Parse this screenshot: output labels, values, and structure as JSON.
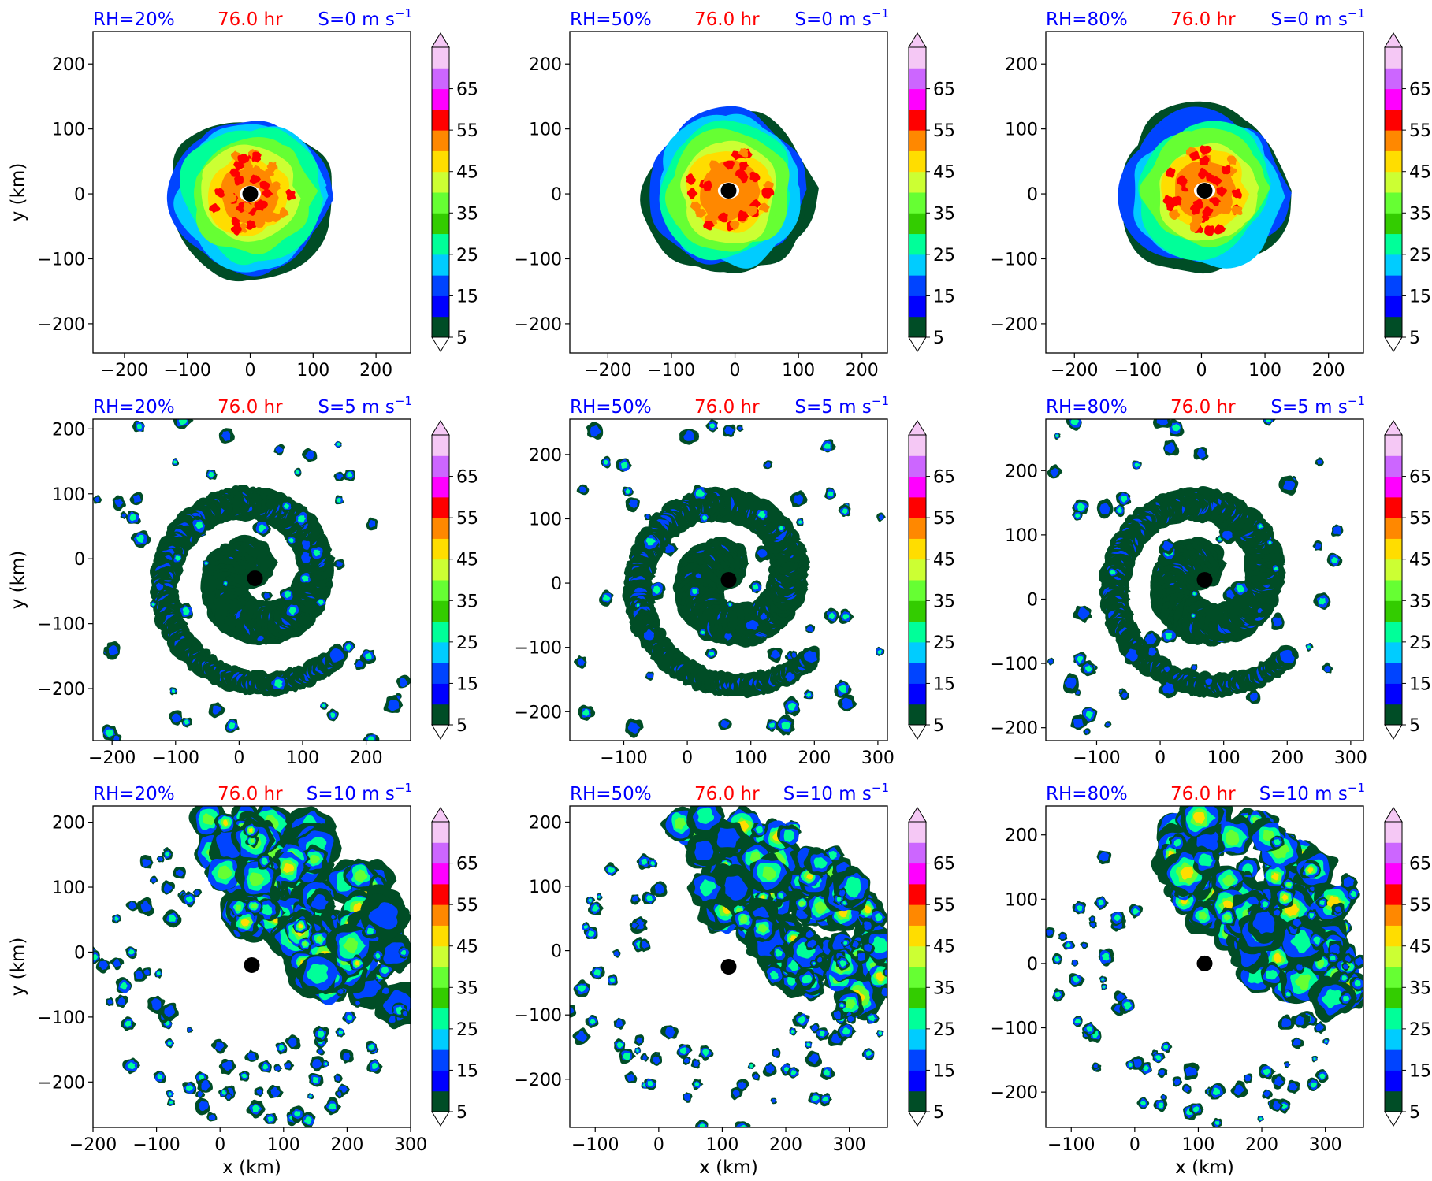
{
  "colors": {
    "rh_title": "#0000ff",
    "time_title": "#ff0000",
    "shear_title": "#0000ff"
  },
  "colorbar": {
    "levels": [
      5,
      10,
      15,
      20,
      25,
      30,
      35,
      40,
      45,
      50,
      55,
      60,
      65,
      70
    ],
    "tick_labels": [
      "5",
      "15",
      "25",
      "35",
      "45",
      "55",
      "65"
    ],
    "colors": [
      "#004d26",
      "#0000ff",
      "#0044ff",
      "#00ccff",
      "#00ff99",
      "#33cc00",
      "#66ff33",
      "#ccff33",
      "#ffdd00",
      "#ff8800",
      "#ff0000",
      "#ff00ff",
      "#cc66ff",
      "#f5c8f5"
    ]
  },
  "chart_data": [
    {
      "type": "contour",
      "rh": "RH=20%",
      "time": "76.0 hr",
      "shear": "S=0 m s",
      "shear_exp": "−1",
      "xlim": [
        -250,
        255
      ],
      "ylim": [
        -245,
        250
      ],
      "xticks": [
        -200,
        -100,
        0,
        100,
        200
      ],
      "yticks": [
        -200,
        -100,
        0,
        100,
        200
      ],
      "xlabel": "",
      "ylabel": "y (km)",
      "center": [
        0,
        0
      ]
    },
    {
      "type": "contour",
      "rh": "RH=50%",
      "time": "76.0 hr",
      "shear": "S=0 m s",
      "shear_exp": "−1",
      "xlim": [
        -260,
        240
      ],
      "ylim": [
        -245,
        250
      ],
      "xticks": [
        -200,
        -100,
        0,
        100,
        200
      ],
      "yticks": [
        -200,
        -100,
        0,
        100,
        200
      ],
      "xlabel": "",
      "ylabel": "",
      "center": [
        -10,
        5
      ]
    },
    {
      "type": "contour",
      "rh": "RH=80%",
      "time": "76.0 hr",
      "shear": "S=0 m s",
      "shear_exp": "−1",
      "xlim": [
        -245,
        255
      ],
      "ylim": [
        -245,
        250
      ],
      "xticks": [
        -200,
        -100,
        0,
        100,
        200
      ],
      "yticks": [
        -200,
        -100,
        0,
        100,
        200
      ],
      "xlabel": "",
      "ylabel": "",
      "center": [
        5,
        5
      ]
    },
    {
      "type": "contour",
      "rh": "RH=20%",
      "time": "76.0 hr",
      "shear": "S=5 m s",
      "shear_exp": "−1",
      "xlim": [
        -230,
        270
      ],
      "ylim": [
        -280,
        215
      ],
      "xticks": [
        -200,
        -100,
        0,
        100,
        200
      ],
      "yticks": [
        -200,
        -100,
        0,
        100,
        200
      ],
      "xlabel": "",
      "ylabel": "y (km)",
      "center": [
        25,
        -30
      ]
    },
    {
      "type": "contour",
      "rh": "RH=50%",
      "time": "76.0 hr",
      "shear": "S=5 m s",
      "shear_exp": "−1",
      "xlim": [
        -185,
        315
      ],
      "ylim": [
        -245,
        255
      ],
      "xticks": [
        -100,
        0,
        100,
        200,
        300
      ],
      "yticks": [
        -200,
        -100,
        0,
        100,
        200
      ],
      "xlabel": "",
      "ylabel": "",
      "center": [
        65,
        5
      ]
    },
    {
      "type": "contour",
      "rh": "RH=80%",
      "time": "76.0 hr",
      "shear": "S=5 m s",
      "shear_exp": "−1",
      "xlim": [
        -180,
        320
      ],
      "ylim": [
        -220,
        280
      ],
      "xticks": [
        -100,
        0,
        100,
        200,
        300
      ],
      "yticks": [
        -200,
        -100,
        0,
        100,
        200
      ],
      "xlabel": "",
      "ylabel": "",
      "center": [
        70,
        30
      ]
    },
    {
      "type": "contour",
      "rh": "RH=20%",
      "time": "76.0 hr",
      "shear": "S=10 m s",
      "shear_exp": "−1",
      "xlim": [
        -200,
        300
      ],
      "ylim": [
        -270,
        225
      ],
      "xticks": [
        -200,
        -100,
        0,
        100,
        200,
        300
      ],
      "yticks": [
        -200,
        -100,
        0,
        100,
        200
      ],
      "xlabel": "x (km)",
      "ylabel": "y (km)",
      "center": [
        50,
        -20
      ]
    },
    {
      "type": "contour",
      "rh": "RH=50%",
      "time": "76.0 hr",
      "shear": "S=10 m s",
      "shear_exp": "−1",
      "xlim": [
        -140,
        360
      ],
      "ylim": [
        -275,
        225
      ],
      "xticks": [
        -100,
        0,
        100,
        200,
        300
      ],
      "yticks": [
        -200,
        -100,
        0,
        100,
        200
      ],
      "xlabel": "x (km)",
      "ylabel": "",
      "center": [
        110,
        -25
      ]
    },
    {
      "type": "contour",
      "rh": "RH=80%",
      "time": "76.0 hr",
      "shear": "S=10 m s",
      "shear_exp": "−1",
      "xlim": [
        -140,
        360
      ],
      "ylim": [
        -255,
        245
      ],
      "xticks": [
        -100,
        0,
        100,
        200,
        300
      ],
      "yticks": [
        -200,
        -100,
        0,
        100,
        200
      ],
      "xlabel": "x (km)",
      "ylabel": "",
      "center": [
        110,
        0
      ]
    }
  ]
}
